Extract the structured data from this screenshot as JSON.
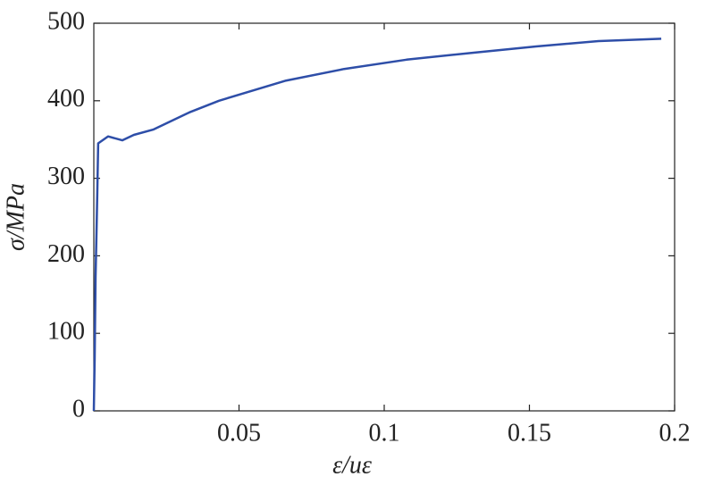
{
  "chart_data": {
    "type": "line",
    "xlabel": "ε/uε",
    "ylabel": "σ/MPa",
    "x": [
      0,
      0.0003,
      0.0006,
      0.0009,
      0.0012,
      0.0015,
      0.0049,
      0.0098,
      0.0138,
      0.0206,
      0.0329,
      0.0431,
      0.0662,
      0.0862,
      0.1077,
      0.1308,
      0.1523,
      0.1738,
      0.1954
    ],
    "series": [
      {
        "color": "#2e4ea8",
        "values": [
          0,
          69,
          173,
          225,
          282,
          345,
          354,
          349,
          356,
          363,
          385,
          400,
          426,
          441,
          453,
          462,
          470,
          477,
          480
        ]
      }
    ],
    "xlim": [
      0,
      0.2
    ],
    "xticks": [
      0.05,
      0.1,
      0.15,
      0.2
    ],
    "ylim": [
      0,
      500
    ],
    "yticks": [
      0,
      100,
      200,
      300,
      400,
      500
    ]
  }
}
